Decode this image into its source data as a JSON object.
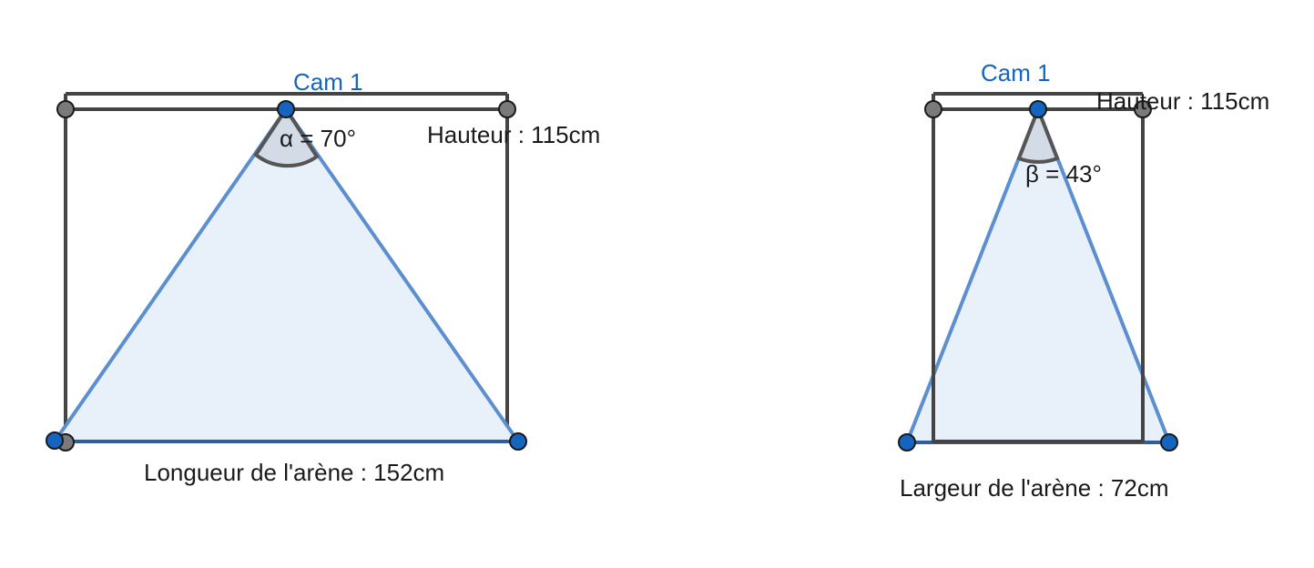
{
  "left_view": {
    "camera_label": "Cam 1",
    "angle_label": "α = 70°",
    "height_label": "Hauteur : 115cm",
    "length_label": "Longueur de l'arène : 152cm"
  },
  "right_view": {
    "camera_label": "Cam 1",
    "angle_label": "β = 43°",
    "height_label": "Hauteur : 115cm",
    "width_label": "Largeur de l'arène : 72cm"
  },
  "colors": {
    "cone_stroke": "#5b8fd0",
    "cone_fill": "#e8f0fa",
    "point_blue": "#1565c0",
    "point_grey": "#7a7a7a",
    "frame": "#444444"
  }
}
